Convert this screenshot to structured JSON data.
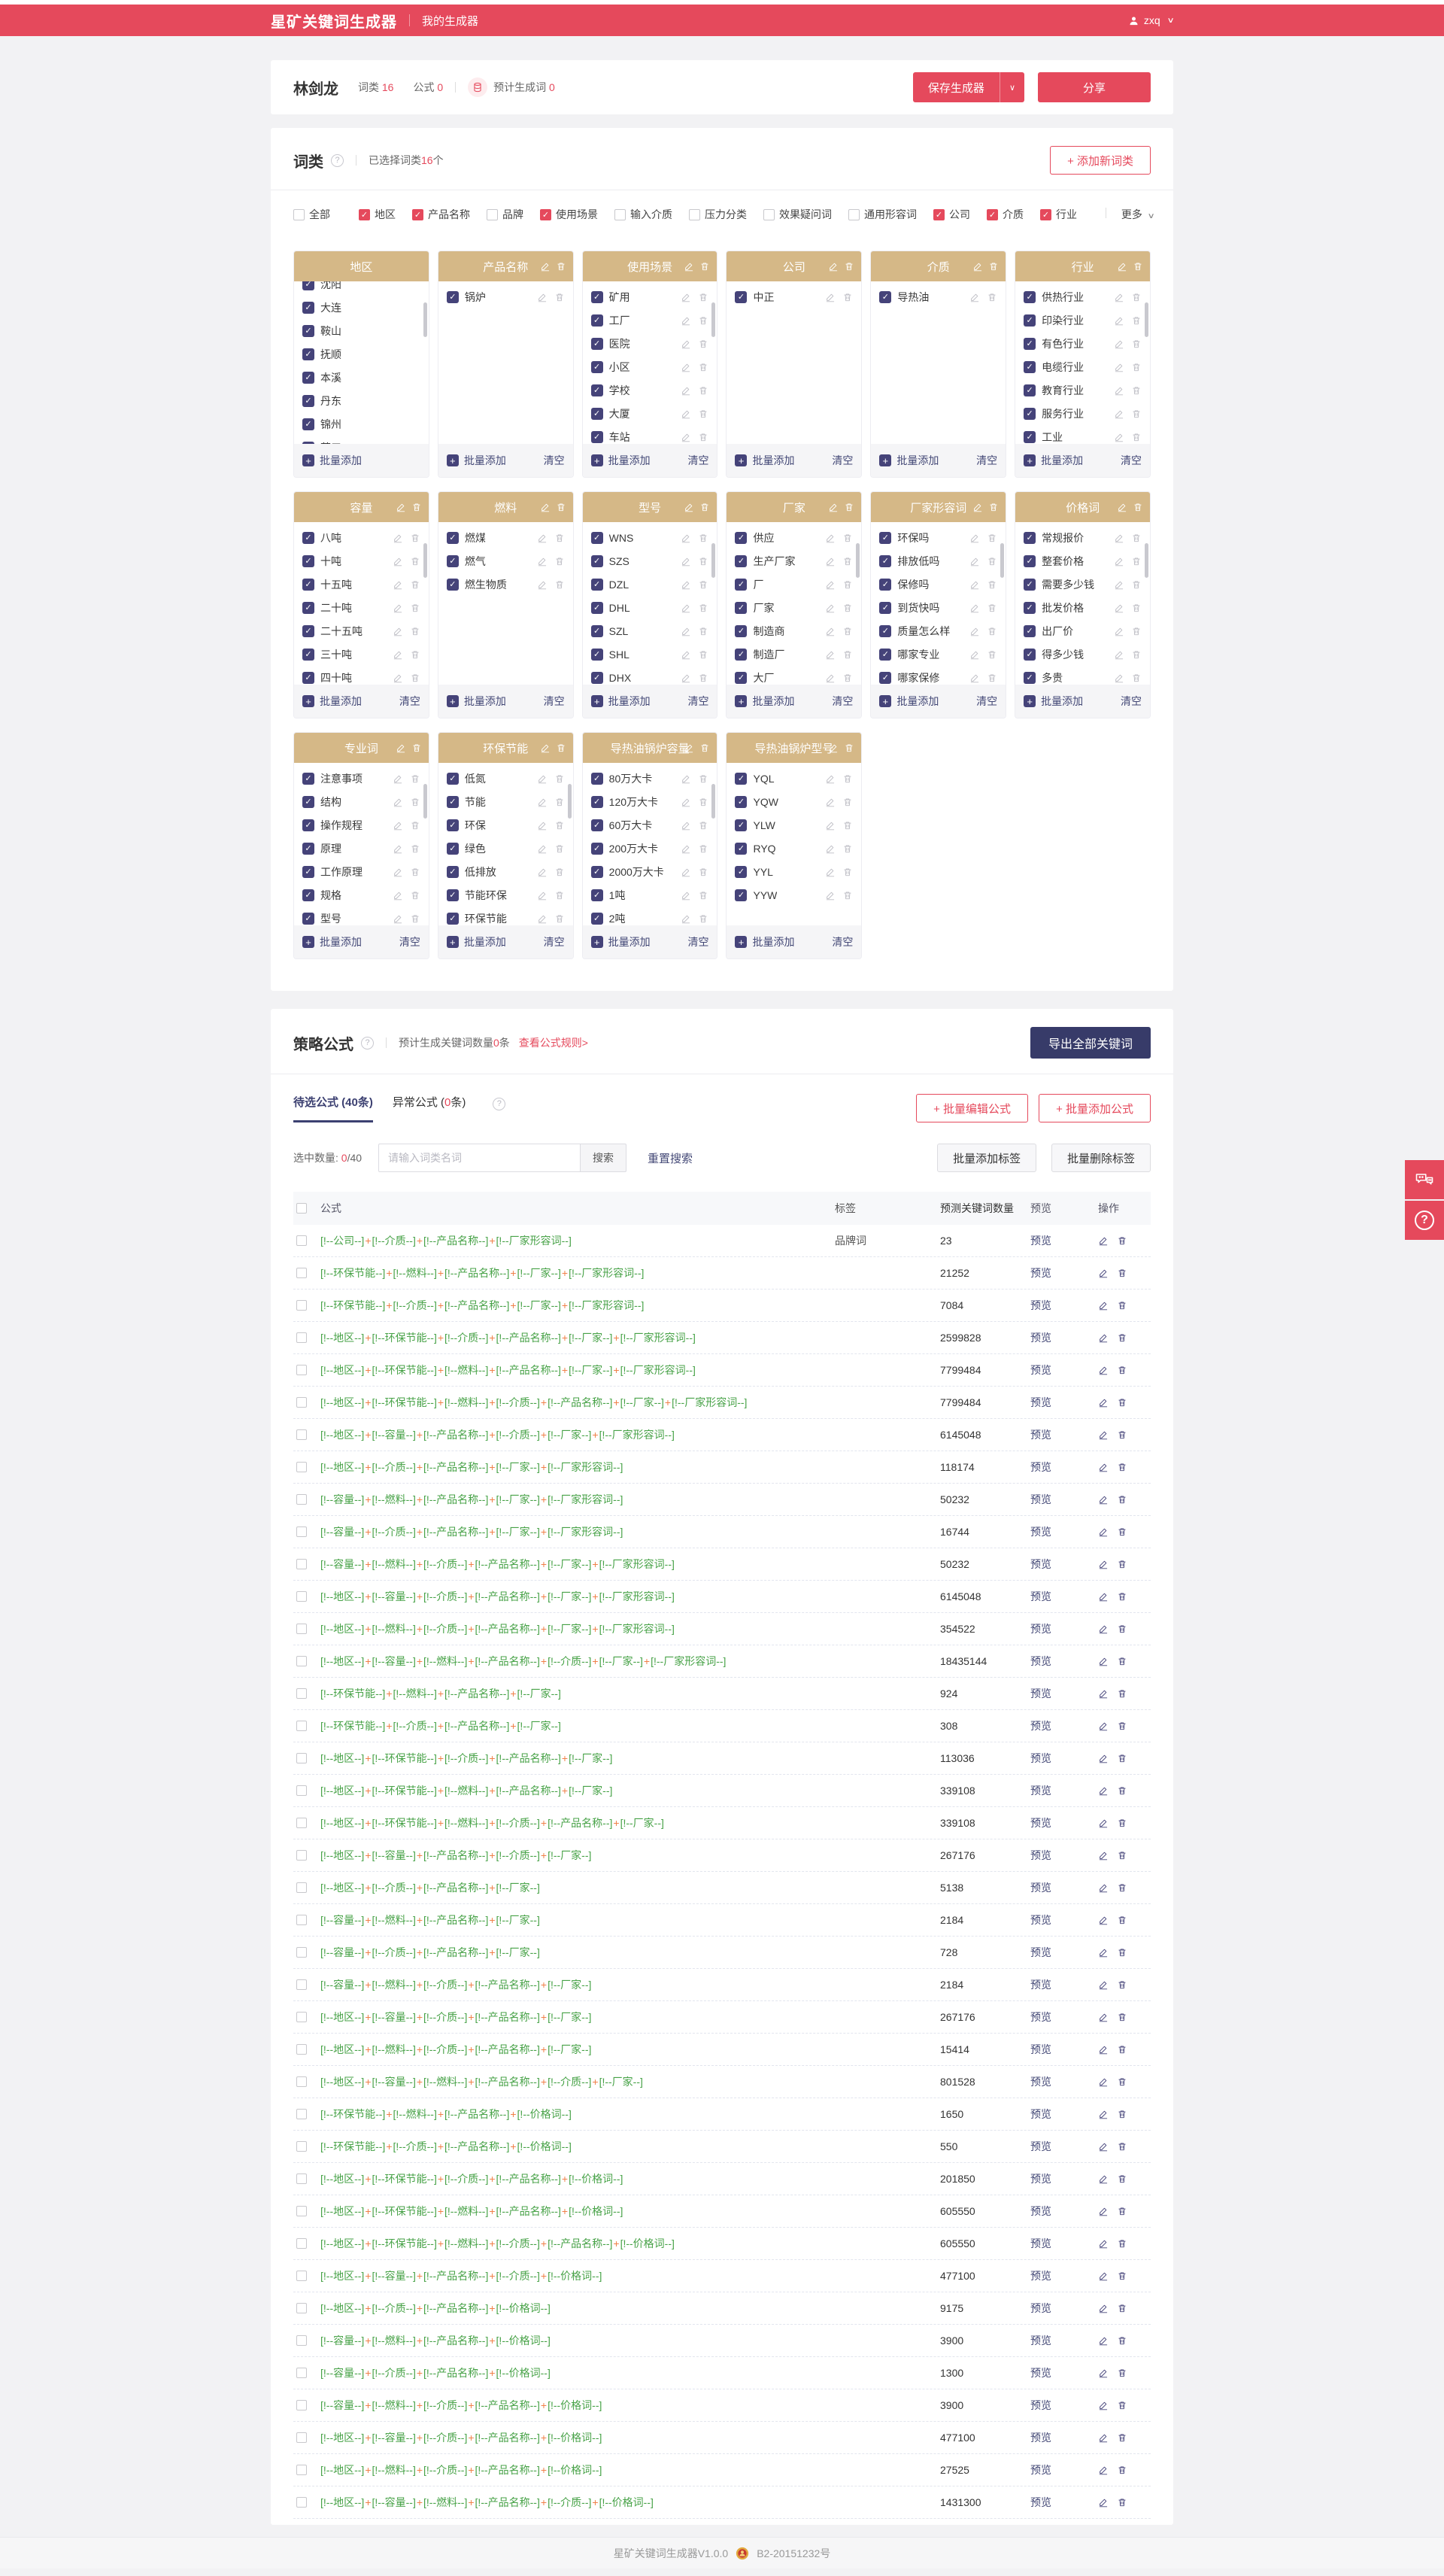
{
  "nav": {
    "logo": "星矿关键词生成器",
    "menu": "我的生成器",
    "user": "zxq"
  },
  "user_bar": {
    "name": "林剑龙",
    "word_class_label": "词类",
    "word_class_value": "16",
    "formula_label": "公式",
    "formula_value": "0",
    "estimate_label": "预计生成词",
    "estimate_value": "0",
    "save_button": "保存生成器",
    "share_button": "分享"
  },
  "word_category": {
    "title": "词类",
    "selected_prefix": "已选择词类",
    "selected_count": "16",
    "selected_suffix": "个",
    "add_button": "+ 添加新词类",
    "more_label": "更多",
    "batch_add_label": "批量添加",
    "clear_label": "清空",
    "filters": [
      {
        "label": "全部",
        "checked": false,
        "divider_after": true
      },
      {
        "label": "地区",
        "checked": true
      },
      {
        "label": "产品名称",
        "checked": true
      },
      {
        "label": "品牌",
        "checked": false
      },
      {
        "label": "使用场景",
        "checked": true
      },
      {
        "label": "输入介质",
        "checked": false
      },
      {
        "label": "压力分类",
        "checked": false
      },
      {
        "label": "效果疑问词",
        "checked": false
      },
      {
        "label": "通用形容词",
        "checked": false
      },
      {
        "label": "公司",
        "checked": true
      },
      {
        "label": "介质",
        "checked": true
      },
      {
        "label": "行业",
        "checked": true
      }
    ],
    "cards": [
      {
        "title": "地区",
        "editable": false,
        "scrollbar": true,
        "scrolled": true,
        "items": [
          "沈阳",
          "大连",
          "鞍山",
          "抚顺",
          "本溪",
          "丹东",
          "锦州",
          "营口"
        ]
      },
      {
        "title": "产品名称",
        "editable": true,
        "scrollbar": false,
        "scrolled": false,
        "items": [
          "锅炉"
        ]
      },
      {
        "title": "使用场景",
        "editable": true,
        "scrollbar": true,
        "scrolled": false,
        "items": [
          "矿用",
          "工厂",
          "医院",
          "小区",
          "学校",
          "大厦",
          "车站"
        ]
      },
      {
        "title": "公司",
        "editable": true,
        "scrollbar": false,
        "scrolled": false,
        "items": [
          "中正"
        ]
      },
      {
        "title": "介质",
        "editable": true,
        "scrollbar": false,
        "scrolled": false,
        "items": [
          "导热油"
        ]
      },
      {
        "title": "行业",
        "editable": true,
        "scrollbar": true,
        "scrolled": false,
        "items": [
          "供热行业",
          "印染行业",
          "有色行业",
          "电缆行业",
          "教育行业",
          "服务行业",
          "工业"
        ]
      },
      {
        "title": "容量",
        "editable": true,
        "scrollbar": true,
        "scrolled": false,
        "items": [
          "八吨",
          "十吨",
          "十五吨",
          "二十吨",
          "二十五吨",
          "三十吨",
          "四十吨"
        ]
      },
      {
        "title": "燃料",
        "editable": true,
        "scrollbar": false,
        "scrolled": false,
        "items": [
          "燃煤",
          "燃气",
          "燃生物质"
        ]
      },
      {
        "title": "型号",
        "editable": true,
        "scrollbar": true,
        "scrolled": false,
        "items": [
          "WNS",
          "SZS",
          "DZL",
          "DHL",
          "SZL",
          "SHL",
          "DHX"
        ]
      },
      {
        "title": "厂家",
        "editable": true,
        "scrollbar": true,
        "scrolled": false,
        "items": [
          "供应",
          "生产厂家",
          "厂",
          "厂家",
          "制造商",
          "制造厂",
          "大厂"
        ]
      },
      {
        "title": "厂家形容词",
        "editable": true,
        "scrollbar": true,
        "scrolled": false,
        "items": [
          "环保吗",
          "排放低吗",
          "保修吗",
          "到货快吗",
          "质量怎么样",
          "哪家专业",
          "哪家保修"
        ]
      },
      {
        "title": "价格词",
        "editable": true,
        "scrollbar": true,
        "scrolled": false,
        "items": [
          "常规报价",
          "整套价格",
          "需要多少钱",
          "批发价格",
          "出厂价",
          "得多少钱",
          "多贵"
        ]
      },
      {
        "title": "专业词",
        "editable": true,
        "scrollbar": true,
        "scrolled": false,
        "items": [
          "注意事项",
          "结构",
          "操作规程",
          "原理",
          "工作原理",
          "规格",
          "型号"
        ]
      },
      {
        "title": "环保节能",
        "editable": true,
        "scrollbar": true,
        "scrolled": false,
        "items": [
          "低氮",
          "节能",
          "环保",
          "绿色",
          "低排放",
          "节能环保",
          "环保节能"
        ]
      },
      {
        "title": "导热油锅炉容量",
        "editable": true,
        "scrollbar": true,
        "scrolled": false,
        "items": [
          "80万大卡",
          "120万大卡",
          "60万大卡",
          "200万大卡",
          "2000万大卡",
          "1吨",
          "2吨"
        ]
      },
      {
        "title": "导热油锅炉型号",
        "editable": true,
        "scrollbar": false,
        "scrolled": false,
        "items": [
          "YQL",
          "YQW",
          "YLW",
          "RYQ",
          "YYL",
          "YYW"
        ]
      }
    ]
  },
  "formula": {
    "title": "策略公式",
    "estimate_prefix": "预计生成关键词数量",
    "estimate_count": "0",
    "estimate_suffix": "条",
    "rules_link": "查看公式规则>",
    "export_button": "导出全部关键词",
    "tab_active": "待选公式 (40条)",
    "tab2_pre": "异常公式 (",
    "tab2_count": "0",
    "tab2_post": "条)",
    "edit_formula_button": "+ 批量编辑公式",
    "add_formula_button": "+ 批量添加公式",
    "selected_label": "选中数量:",
    "selected_count": "0",
    "selected_total": "/40",
    "search_placeholder": "请输入词类名词",
    "search_button": "搜索",
    "reset_button": "重置搜索",
    "batch_add_tag_button": "批量添加标签",
    "batch_del_tag_button": "批量删除标签",
    "table": {
      "headers": {
        "formula": "公式",
        "tag": "标签",
        "count": "预测关键词数量",
        "preview": "预览",
        "ops": "操作"
      },
      "preview_label": "预览",
      "tag_open": "[!--",
      "tag_close": "--]",
      "joiner": "+",
      "rows": [
        {
          "parts": [
            "公司",
            "介质",
            "产品名称",
            "厂家形容词"
          ],
          "tag": "品牌词",
          "count": "23"
        },
        {
          "parts": [
            "环保节能",
            "燃料",
            "产品名称",
            "厂家",
            "厂家形容词"
          ],
          "tag": "",
          "count": "21252"
        },
        {
          "parts": [
            "环保节能",
            "介质",
            "产品名称",
            "厂家",
            "厂家形容词"
          ],
          "tag": "",
          "count": "7084"
        },
        {
          "parts": [
            "地区",
            "环保节能",
            "介质",
            "产品名称",
            "厂家",
            "厂家形容词"
          ],
          "tag": "",
          "count": "2599828"
        },
        {
          "parts": [
            "地区",
            "环保节能",
            "燃料",
            "产品名称",
            "厂家",
            "厂家形容词"
          ],
          "tag": "",
          "count": "7799484"
        },
        {
          "parts": [
            "地区",
            "环保节能",
            "燃料",
            "介质",
            "产品名称",
            "厂家",
            "厂家形容词"
          ],
          "tag": "",
          "count": "7799484"
        },
        {
          "parts": [
            "地区",
            "容量",
            "产品名称",
            "介质",
            "厂家",
            "厂家形容词"
          ],
          "tag": "",
          "count": "6145048"
        },
        {
          "parts": [
            "地区",
            "介质",
            "产品名称",
            "厂家",
            "厂家形容词"
          ],
          "tag": "",
          "count": "118174"
        },
        {
          "parts": [
            "容量",
            "燃料",
            "产品名称",
            "厂家",
            "厂家形容词"
          ],
          "tag": "",
          "count": "50232"
        },
        {
          "parts": [
            "容量",
            "介质",
            "产品名称",
            "厂家",
            "厂家形容词"
          ],
          "tag": "",
          "count": "16744"
        },
        {
          "parts": [
            "容量",
            "燃料",
            "介质",
            "产品名称",
            "厂家",
            "厂家形容词"
          ],
          "tag": "",
          "count": "50232"
        },
        {
          "parts": [
            "地区",
            "容量",
            "介质",
            "产品名称",
            "厂家",
            "厂家形容词"
          ],
          "tag": "",
          "count": "6145048"
        },
        {
          "parts": [
            "地区",
            "燃料",
            "介质",
            "产品名称",
            "厂家",
            "厂家形容词"
          ],
          "tag": "",
          "count": "354522"
        },
        {
          "parts": [
            "地区",
            "容量",
            "燃料",
            "产品名称",
            "介质",
            "厂家",
            "厂家形容词"
          ],
          "tag": "",
          "count": "18435144"
        },
        {
          "parts": [
            "环保节能",
            "燃料",
            "产品名称",
            "厂家"
          ],
          "tag": "",
          "count": "924"
        },
        {
          "parts": [
            "环保节能",
            "介质",
            "产品名称",
            "厂家"
          ],
          "tag": "",
          "count": "308"
        },
        {
          "parts": [
            "地区",
            "环保节能",
            "介质",
            "产品名称",
            "厂家"
          ],
          "tag": "",
          "count": "113036"
        },
        {
          "parts": [
            "地区",
            "环保节能",
            "燃料",
            "产品名称",
            "厂家"
          ],
          "tag": "",
          "count": "339108"
        },
        {
          "parts": [
            "地区",
            "环保节能",
            "燃料",
            "介质",
            "产品名称",
            "厂家"
          ],
          "tag": "",
          "count": "339108"
        },
        {
          "parts": [
            "地区",
            "容量",
            "产品名称",
            "介质",
            "厂家"
          ],
          "tag": "",
          "count": "267176"
        },
        {
          "parts": [
            "地区",
            "介质",
            "产品名称",
            "厂家"
          ],
          "tag": "",
          "count": "5138"
        },
        {
          "parts": [
            "容量",
            "燃料",
            "产品名称",
            "厂家"
          ],
          "tag": "",
          "count": "2184"
        },
        {
          "parts": [
            "容量",
            "介质",
            "产品名称",
            "厂家"
          ],
          "tag": "",
          "count": "728"
        },
        {
          "parts": [
            "容量",
            "燃料",
            "介质",
            "产品名称",
            "厂家"
          ],
          "tag": "",
          "count": "2184"
        },
        {
          "parts": [
            "地区",
            "容量",
            "介质",
            "产品名称",
            "厂家"
          ],
          "tag": "",
          "count": "267176"
        },
        {
          "parts": [
            "地区",
            "燃料",
            "介质",
            "产品名称",
            "厂家"
          ],
          "tag": "",
          "count": "15414"
        },
        {
          "parts": [
            "地区",
            "容量",
            "燃料",
            "产品名称",
            "介质",
            "厂家"
          ],
          "tag": "",
          "count": "801528"
        },
        {
          "parts": [
            "环保节能",
            "燃料",
            "产品名称",
            "价格词"
          ],
          "tag": "",
          "count": "1650"
        },
        {
          "parts": [
            "环保节能",
            "介质",
            "产品名称",
            "价格词"
          ],
          "tag": "",
          "count": "550"
        },
        {
          "parts": [
            "地区",
            "环保节能",
            "介质",
            "产品名称",
            "价格词"
          ],
          "tag": "",
          "count": "201850"
        },
        {
          "parts": [
            "地区",
            "环保节能",
            "燃料",
            "产品名称",
            "价格词"
          ],
          "tag": "",
          "count": "605550"
        },
        {
          "parts": [
            "地区",
            "环保节能",
            "燃料",
            "介质",
            "产品名称",
            "价格词"
          ],
          "tag": "",
          "count": "605550"
        },
        {
          "parts": [
            "地区",
            "容量",
            "产品名称",
            "介质",
            "价格词"
          ],
          "tag": "",
          "count": "477100"
        },
        {
          "parts": [
            "地区",
            "介质",
            "产品名称",
            "价格词"
          ],
          "tag": "",
          "count": "9175"
        },
        {
          "parts": [
            "容量",
            "燃料",
            "产品名称",
            "价格词"
          ],
          "tag": "",
          "count": "3900"
        },
        {
          "parts": [
            "容量",
            "介质",
            "产品名称",
            "价格词"
          ],
          "tag": "",
          "count": "1300"
        },
        {
          "parts": [
            "容量",
            "燃料",
            "介质",
            "产品名称",
            "价格词"
          ],
          "tag": "",
          "count": "3900"
        },
        {
          "parts": [
            "地区",
            "容量",
            "介质",
            "产品名称",
            "价格词"
          ],
          "tag": "",
          "count": "477100"
        },
        {
          "parts": [
            "地区",
            "燃料",
            "介质",
            "产品名称",
            "价格词"
          ],
          "tag": "",
          "count": "27525"
        },
        {
          "parts": [
            "地区",
            "容量",
            "燃料",
            "产品名称",
            "介质",
            "价格词"
          ],
          "tag": "",
          "count": "1431300"
        }
      ]
    }
  },
  "floating": {
    "chat_icon": "chat-bubbles",
    "help_icon": "question-mark"
  },
  "footer": {
    "app_version": "星矿关键词生成器V1.0.0",
    "icp": "B2-20151232号"
  },
  "colors": {
    "accent_red": "#e5495c",
    "navy": "#454379",
    "tan_header": "#d5b887",
    "formula_green": "#47a247",
    "formula_plus_orange": "#f08048",
    "export_navy": "#373b69"
  }
}
